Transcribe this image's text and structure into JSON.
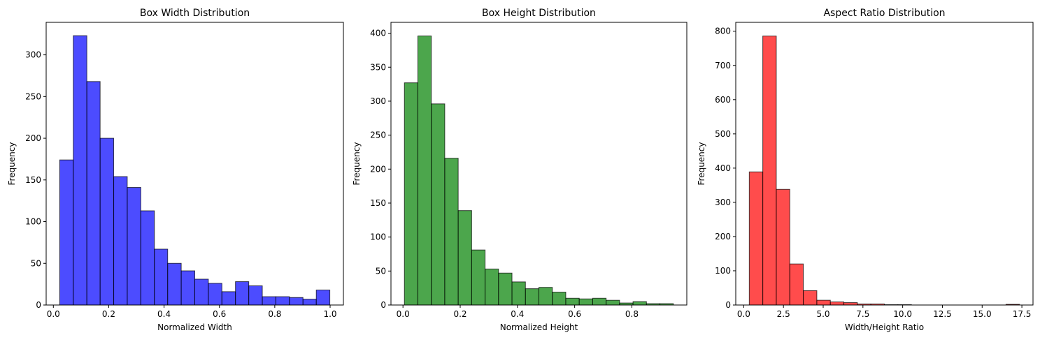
{
  "chart_data": [
    {
      "type": "bar",
      "title": "Box Width Distribution",
      "xlabel": "Normalized Width",
      "ylabel": "Frequency",
      "bin_edges": [
        0.023,
        0.072,
        0.121,
        0.169,
        0.218,
        0.267,
        0.316,
        0.365,
        0.413,
        0.462,
        0.511,
        0.56,
        0.609,
        0.658,
        0.706,
        0.755,
        0.804,
        0.853,
        0.902,
        0.95,
        0.999
      ],
      "values": [
        174,
        323,
        268,
        200,
        154,
        141,
        113,
        67,
        50,
        41,
        31,
        26,
        16,
        28,
        23,
        10,
        10,
        9,
        7,
        18
      ],
      "xlim": [
        -0.026,
        1.048
      ],
      "ylim": [
        0,
        339
      ],
      "xticks": [
        0.0,
        0.2,
        0.4,
        0.6,
        0.8,
        1.0
      ],
      "xtick_labels": [
        "0.0",
        "0.2",
        "0.4",
        "0.6",
        "0.8",
        "1.0"
      ],
      "yticks": [
        0,
        50,
        100,
        150,
        200,
        250,
        300
      ],
      "ytick_labels": [
        "0",
        "50",
        "100",
        "150",
        "200",
        "250",
        "300"
      ],
      "color": "#0000ff",
      "edge_color": "#000000",
      "grid": false
    },
    {
      "type": "bar",
      "title": "Box Height Distribution",
      "xlabel": "Normalized Height",
      "ylabel": "Frequency",
      "bin_edges": [
        0.005,
        0.052,
        0.099,
        0.146,
        0.193,
        0.24,
        0.287,
        0.334,
        0.381,
        0.428,
        0.475,
        0.522,
        0.569,
        0.616,
        0.663,
        0.71,
        0.757,
        0.804,
        0.851,
        0.898,
        0.945
      ],
      "values": [
        327,
        396,
        296,
        216,
        139,
        81,
        53,
        47,
        34,
        24,
        26,
        19,
        10,
        9,
        10,
        7,
        3,
        5,
        2,
        2
      ],
      "xlim": [
        -0.042,
        0.992
      ],
      "ylim": [
        0,
        416
      ],
      "xticks": [
        0.0,
        0.2,
        0.4,
        0.6,
        0.8
      ],
      "xtick_labels": [
        "0.0",
        "0.2",
        "0.4",
        "0.6",
        "0.8"
      ],
      "yticks": [
        0,
        50,
        100,
        150,
        200,
        250,
        300,
        350,
        400
      ],
      "ytick_labels": [
        "0",
        "50",
        "100",
        "150",
        "200",
        "250",
        "300",
        "350",
        "400"
      ],
      "color": "#008000",
      "edge_color": "#000000",
      "grid": false
    },
    {
      "type": "bar",
      "title": "Aspect Ratio Distribution",
      "xlabel": "Width/Height Ratio",
      "ylabel": "Frequency",
      "bin_edges": [
        0.35,
        1.2,
        2.05,
        2.9,
        3.75,
        4.6,
        5.45,
        6.3,
        7.15,
        8.0,
        8.85,
        9.7,
        10.55,
        11.4,
        12.25,
        13.1,
        13.95,
        14.8,
        15.65,
        16.5,
        17.35
      ],
      "values": [
        389,
        786,
        338,
        120,
        42,
        14,
        9,
        7,
        3,
        3,
        1,
        1,
        0,
        0,
        0,
        0,
        0,
        0,
        0,
        2
      ],
      "xlim": [
        -0.5,
        18.2
      ],
      "ylim": [
        0,
        826
      ],
      "xticks": [
        0.0,
        2.5,
        5.0,
        7.5,
        10.0,
        12.5,
        15.0,
        17.5
      ],
      "xtick_labels": [
        "0.0",
        "2.5",
        "5.0",
        "7.5",
        "10.0",
        "12.5",
        "15.0",
        "17.5"
      ],
      "yticks": [
        0,
        100,
        200,
        300,
        400,
        500,
        600,
        700,
        800
      ],
      "ytick_labels": [
        "0",
        "100",
        "200",
        "300",
        "400",
        "500",
        "600",
        "700",
        "800"
      ],
      "color": "#ff0000",
      "edge_color": "#000000",
      "grid": false
    }
  ]
}
